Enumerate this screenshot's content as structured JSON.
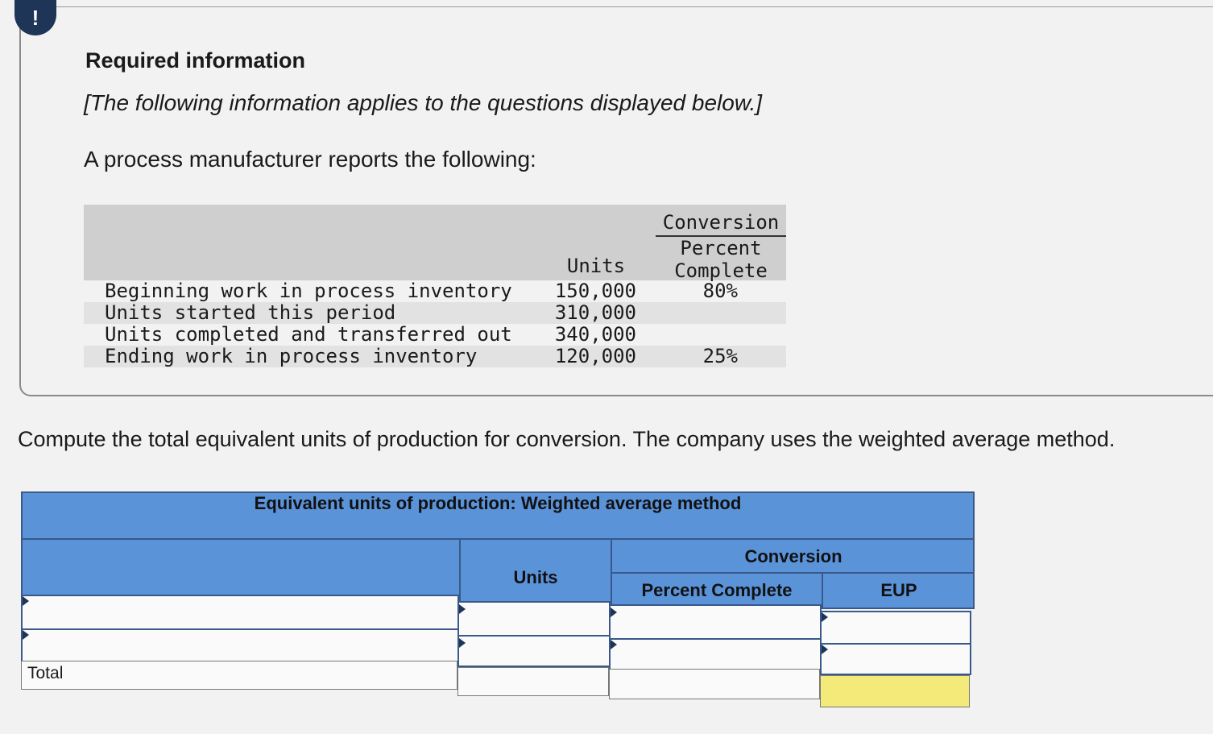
{
  "alert": {
    "icon": "exclamation-icon",
    "symbol": "!"
  },
  "info": {
    "title": "Required information",
    "note": "[The following information applies to the questions displayed below.]",
    "intro": "A process manufacturer reports the following:"
  },
  "data_table": {
    "conversion_header": "Conversion",
    "percent_header_1": "Percent",
    "percent_header_2": "Complete",
    "units_header": "Units",
    "rows": [
      {
        "label": "Beginning work in process inventory",
        "units": "150,000",
        "percent": "80%"
      },
      {
        "label": "Units started this period",
        "units": "310,000",
        "percent": ""
      },
      {
        "label": "Units completed and transferred out",
        "units": "340,000",
        "percent": ""
      },
      {
        "label": "Ending work in process inventory",
        "units": "120,000",
        "percent": "25%"
      }
    ]
  },
  "question": "Compute the total equivalent units of production for conversion. The company uses the weighted average method.",
  "eup_table": {
    "title": "Equivalent units of production: Weighted average method",
    "units_header": "Units",
    "conversion_header": "Conversion",
    "percent_header": "Percent Complete",
    "eup_header": "EUP",
    "total_label": "Total",
    "colors": {
      "header_bg": "#5b93d9",
      "total_cell": "#f3ea7a"
    }
  }
}
